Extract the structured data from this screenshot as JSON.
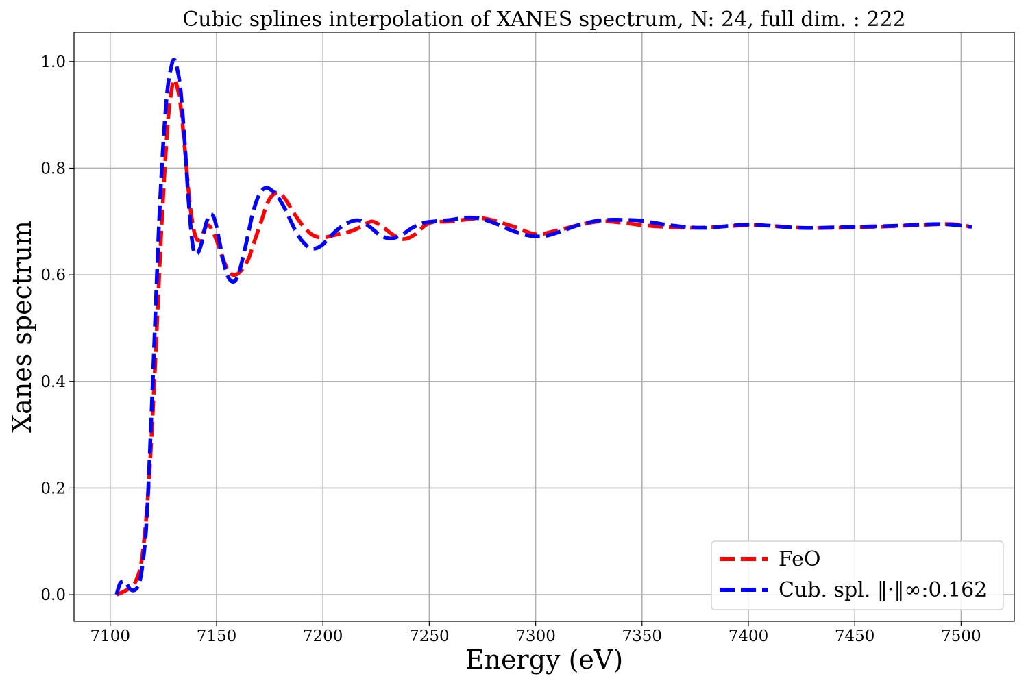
{
  "chart_data": {
    "type": "line",
    "title": "Cubic splines interpolation of XANES spectrum, N: 24, full dim. : 222",
    "xlabel": "Energy (eV)",
    "ylabel": "Xanes spectrum",
    "xlim": [
      7083,
      7525
    ],
    "ylim": [
      -0.05,
      1.055
    ],
    "xticks": [
      7100,
      7150,
      7200,
      7250,
      7300,
      7350,
      7400,
      7450,
      7500
    ],
    "yticks": [
      0.0,
      0.2,
      0.4,
      0.6,
      0.8,
      1.0
    ],
    "xtick_labels": [
      "7100",
      "7150",
      "7200",
      "7250",
      "7300",
      "7350",
      "7400",
      "7450",
      "7500"
    ],
    "ytick_labels": [
      "0.0",
      "0.2",
      "0.4",
      "0.6",
      "0.8",
      "1.0"
    ],
    "grid": true,
    "legend_position": "bottom-right",
    "series": [
      {
        "name": "FeO",
        "color": "#ff0000",
        "style": "dashed",
        "x": [
          7103,
          7106,
          7109,
          7112,
          7115,
          7118,
          7121,
          7124,
          7127,
          7129,
          7130,
          7131,
          7133,
          7135,
          7137,
          7139,
          7141,
          7143,
          7145,
          7147,
          7150,
          7153,
          7156,
          7159,
          7162,
          7165,
          7168,
          7171,
          7174,
          7177,
          7180,
          7183,
          7186,
          7190,
          7195,
          7200,
          7206,
          7212,
          7218,
          7223,
          7228,
          7233,
          7238,
          7243,
          7250,
          7260,
          7270,
          7275,
          7280,
          7290,
          7300,
          7310,
          7320,
          7330,
          7340,
          7350,
          7360,
          7375,
          7390,
          7400,
          7410,
          7425,
          7440,
          7460,
          7480,
          7495,
          7505
        ],
        "y": [
          0.0,
          0.005,
          0.012,
          0.025,
          0.07,
          0.2,
          0.42,
          0.68,
          0.88,
          0.95,
          0.965,
          0.96,
          0.92,
          0.84,
          0.75,
          0.69,
          0.665,
          0.672,
          0.69,
          0.69,
          0.665,
          0.63,
          0.605,
          0.6,
          0.61,
          0.63,
          0.665,
          0.7,
          0.735,
          0.752,
          0.752,
          0.738,
          0.718,
          0.695,
          0.675,
          0.67,
          0.675,
          0.68,
          0.69,
          0.7,
          0.69,
          0.675,
          0.667,
          0.675,
          0.697,
          0.7,
          0.705,
          0.706,
          0.702,
          0.69,
          0.676,
          0.683,
          0.693,
          0.7,
          0.698,
          0.693,
          0.69,
          0.688,
          0.691,
          0.693,
          0.692,
          0.688,
          0.688,
          0.69,
          0.693,
          0.695,
          0.69
        ]
      },
      {
        "name": "Cub. spl. ‖·‖∞:0.162",
        "color": "#0000ff",
        "style": "dashed",
        "x": [
          7103,
          7104.5,
          7106,
          7107.5,
          7109,
          7110.5,
          7112,
          7113.5,
          7115,
          7117,
          7119,
          7121,
          7123,
          7125,
          7127,
          7129,
          7130,
          7131,
          7133,
          7135,
          7137,
          7139,
          7141,
          7143,
          7145,
          7147,
          7149,
          7151,
          7153,
          7155,
          7157,
          7159,
          7161,
          7164,
          7167,
          7170,
          7173,
          7176,
          7179,
          7182,
          7185,
          7188,
          7191,
          7194,
          7197,
          7200,
          7203,
          7207,
          7212,
          7217,
          7222,
          7227,
          7232,
          7237,
          7242,
          7247,
          7252,
          7260,
          7267,
          7273,
          7280,
          7287,
          7294,
          7300,
          7306,
          7313,
          7320,
          7327,
          7334,
          7341,
          7348,
          7355,
          7365,
          7380,
          7400,
          7425,
          7450,
          7470,
          7490,
          7505
        ],
        "y": [
          0.0,
          0.02,
          0.025,
          0.022,
          0.012,
          0.008,
          0.01,
          0.02,
          0.05,
          0.13,
          0.3,
          0.5,
          0.7,
          0.85,
          0.95,
          0.995,
          1.003,
          0.995,
          0.95,
          0.85,
          0.73,
          0.65,
          0.64,
          0.66,
          0.695,
          0.713,
          0.705,
          0.67,
          0.63,
          0.6,
          0.588,
          0.59,
          0.61,
          0.66,
          0.715,
          0.75,
          0.763,
          0.758,
          0.745,
          0.725,
          0.7,
          0.676,
          0.66,
          0.65,
          0.65,
          0.657,
          0.67,
          0.685,
          0.698,
          0.702,
          0.69,
          0.674,
          0.668,
          0.675,
          0.688,
          0.697,
          0.7,
          0.703,
          0.707,
          0.706,
          0.698,
          0.686,
          0.676,
          0.672,
          0.674,
          0.683,
          0.693,
          0.7,
          0.703,
          0.703,
          0.702,
          0.698,
          0.692,
          0.688,
          0.694,
          0.688,
          0.69,
          0.692,
          0.695,
          0.69
        ]
      }
    ]
  }
}
